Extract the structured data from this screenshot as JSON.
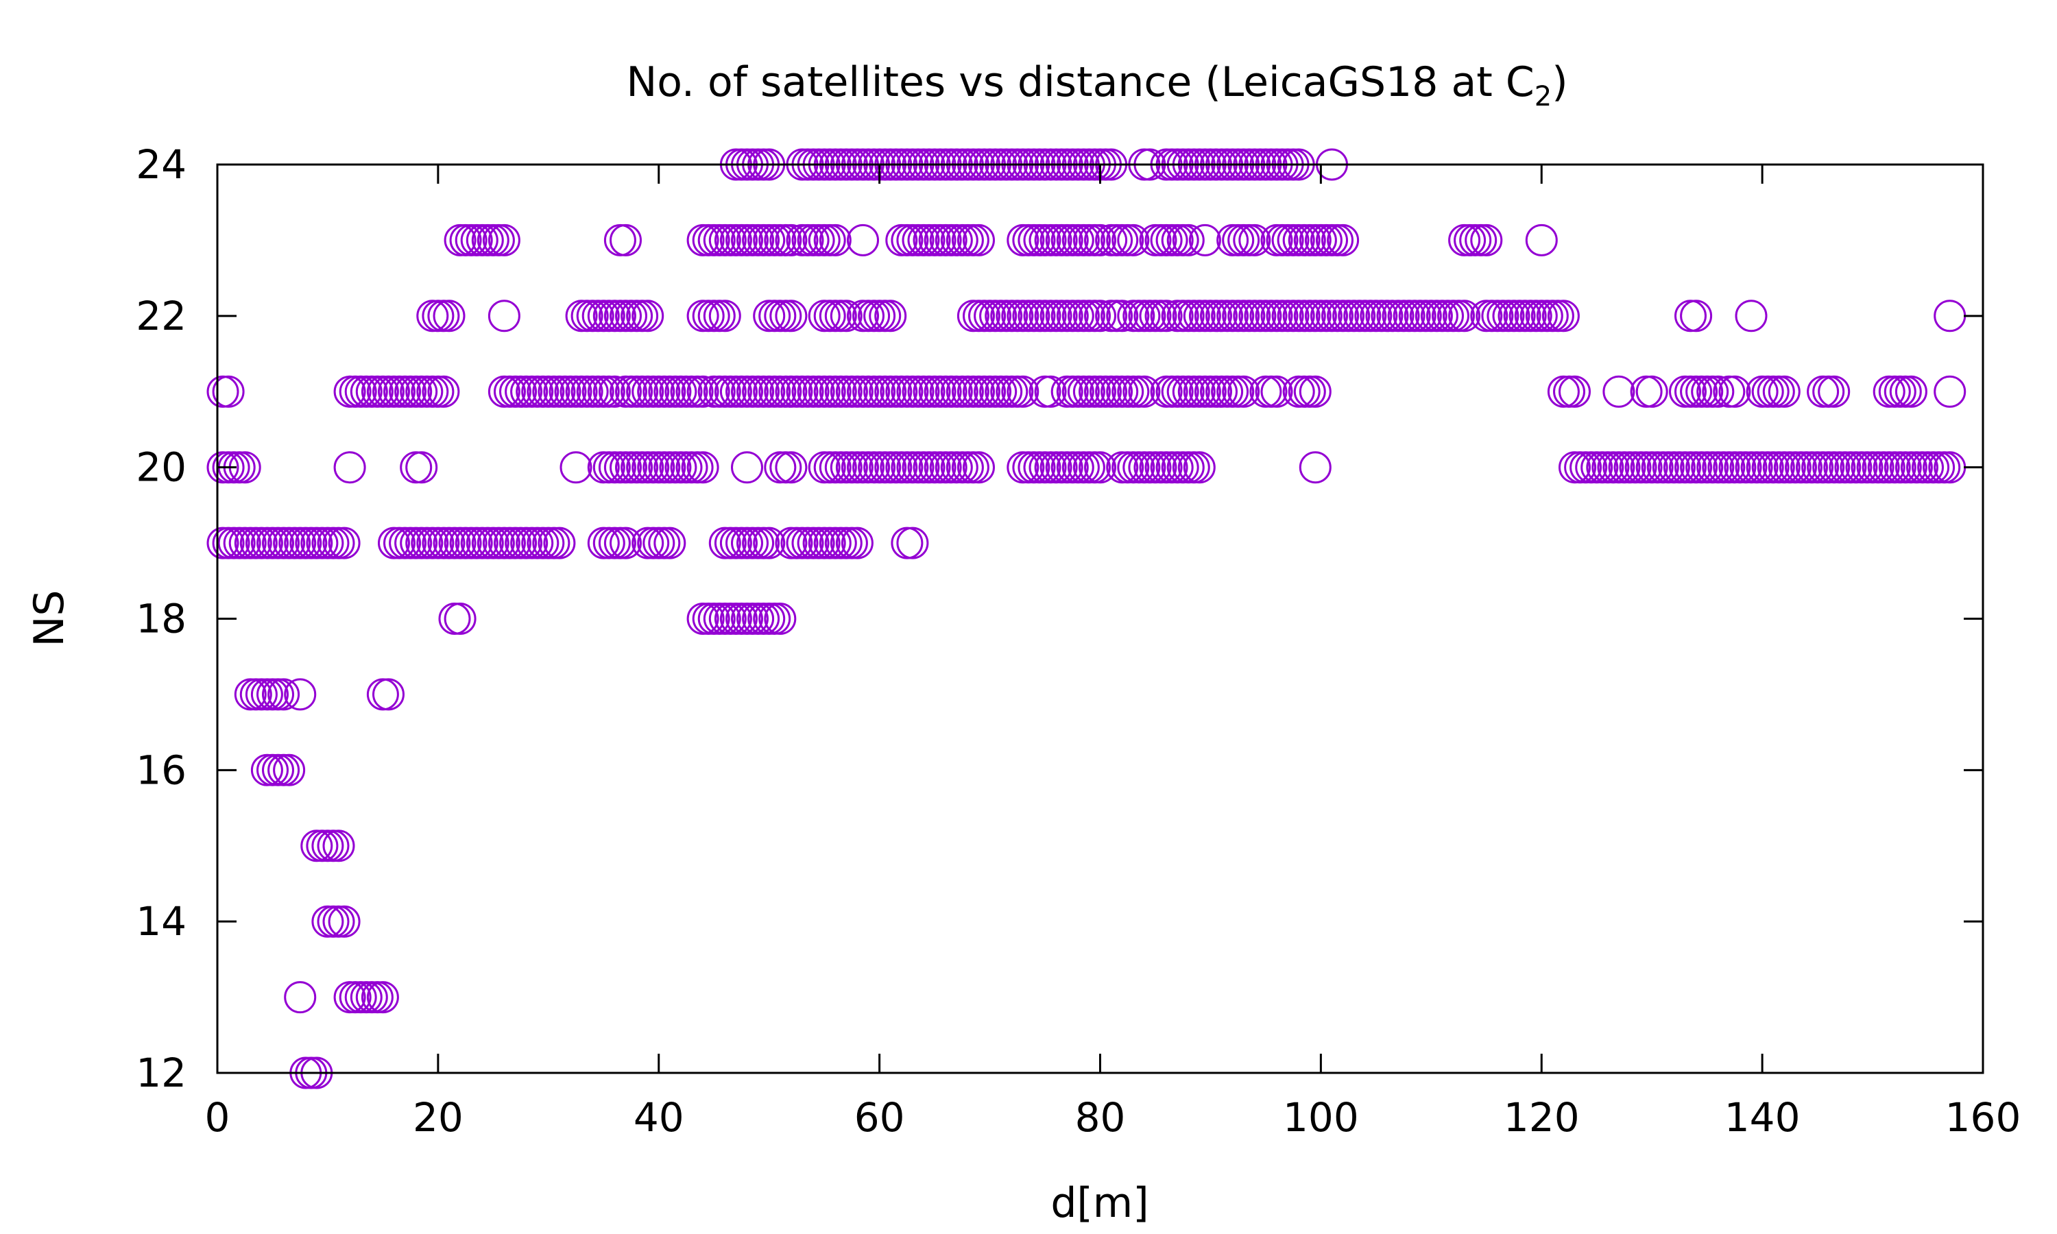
{
  "chart_data": {
    "type": "scatter",
    "title_main": "No. of satellites vs distance (LeicaGS18 at C",
    "title_sub": "2",
    "title_end": ")",
    "xlabel": "d[m]",
    "ylabel": "NS",
    "xlim": [
      0,
      160
    ],
    "ylim": [
      12,
      24
    ],
    "xticks": [
      0,
      20,
      40,
      60,
      80,
      100,
      120,
      140,
      160
    ],
    "yticks": [
      12,
      14,
      16,
      18,
      20,
      22,
      24
    ],
    "marker": "open-circle",
    "marker_color": "#9400D3",
    "grid": false,
    "legend": "none",
    "ranges": [
      {
        "y": 24,
        "x": [
          [
            47,
            50
          ],
          [
            53,
            81
          ],
          [
            84,
            84.5
          ],
          [
            86,
            98
          ],
          [
            101,
            101
          ]
        ]
      },
      {
        "y": 23,
        "x": [
          [
            22,
            26
          ],
          [
            36.5,
            37
          ],
          [
            44,
            52
          ],
          [
            53,
            56
          ],
          [
            58.5,
            58.5
          ],
          [
            62,
            69
          ],
          [
            73,
            80
          ],
          [
            81,
            83
          ],
          [
            85,
            88
          ],
          [
            89.5,
            89.5
          ],
          [
            92,
            94
          ],
          [
            96,
            102
          ],
          [
            113,
            115
          ],
          [
            120,
            120
          ]
        ]
      },
      {
        "y": 22,
        "x": [
          [
            19.5,
            21
          ],
          [
            26,
            26
          ],
          [
            33,
            39
          ],
          [
            44,
            46
          ],
          [
            50,
            52
          ],
          [
            55,
            57
          ],
          [
            58.5,
            61
          ],
          [
            68.5,
            80
          ],
          [
            81,
            82
          ],
          [
            83,
            86
          ],
          [
            87,
            113
          ],
          [
            115,
            122
          ],
          [
            133.5,
            134
          ],
          [
            139,
            139
          ],
          [
            157,
            157
          ]
        ]
      },
      {
        "y": 21,
        "x": [
          [
            0.5,
            1
          ],
          [
            12,
            20.5
          ],
          [
            26,
            36
          ],
          [
            37,
            44
          ],
          [
            45,
            73
          ],
          [
            75,
            75.5
          ],
          [
            77,
            84
          ],
          [
            86,
            93
          ],
          [
            95,
            96
          ],
          [
            98,
            99.5
          ],
          [
            122,
            123
          ],
          [
            127,
            127
          ],
          [
            129.5,
            130
          ],
          [
            133,
            136
          ],
          [
            137,
            137.5
          ],
          [
            140,
            142
          ],
          [
            145.5,
            146.5
          ],
          [
            151.5,
            153.5
          ],
          [
            157,
            157
          ]
        ]
      },
      {
        "y": 20,
        "x": [
          [
            0.5,
            2.5
          ],
          [
            12,
            12
          ],
          [
            18,
            18.5
          ],
          [
            32.5,
            32.5
          ],
          [
            35,
            44
          ],
          [
            48,
            48
          ],
          [
            51,
            52
          ],
          [
            55,
            69
          ],
          [
            73,
            80
          ],
          [
            82,
            89
          ],
          [
            99.5,
            99.5
          ],
          [
            123,
            157
          ]
        ]
      },
      {
        "y": 19,
        "x": [
          [
            0.5,
            11.5
          ],
          [
            16,
            31
          ],
          [
            35,
            37
          ],
          [
            39,
            41
          ],
          [
            46,
            50
          ],
          [
            52,
            58
          ],
          [
            62.5,
            63
          ]
        ]
      },
      {
        "y": 18,
        "x": [
          [
            21.5,
            22
          ],
          [
            44,
            51
          ]
        ]
      },
      {
        "y": 17,
        "x": [
          [
            3,
            6
          ],
          [
            7.5,
            7.5
          ],
          [
            15,
            15.5
          ]
        ]
      },
      {
        "y": 16,
        "x": [
          [
            4.5,
            6.5
          ]
        ]
      },
      {
        "y": 15,
        "x": [
          [
            9,
            11
          ]
        ]
      },
      {
        "y": 14,
        "x": [
          [
            10,
            11.5
          ]
        ]
      },
      {
        "y": 13,
        "x": [
          [
            7.5,
            7.5
          ],
          [
            12,
            15
          ]
        ]
      },
      {
        "y": 12,
        "x": [
          [
            8,
            9
          ]
        ]
      }
    ],
    "step": 0.5
  }
}
